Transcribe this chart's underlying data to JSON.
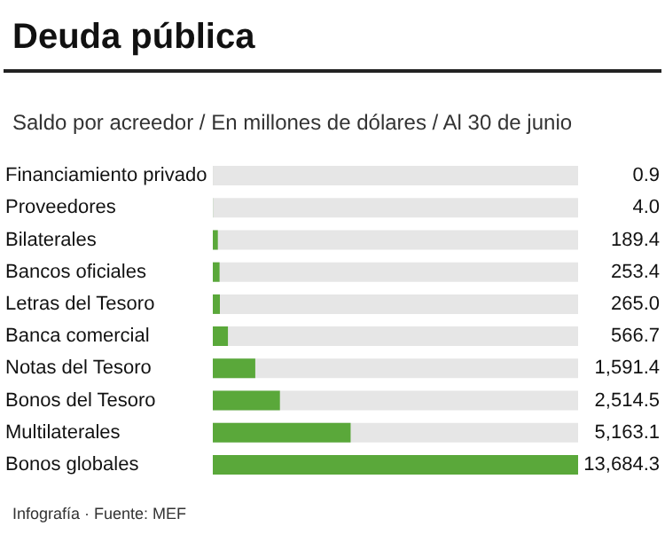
{
  "chart_data": {
    "type": "bar",
    "orientation": "horizontal",
    "title": "Deuda pública",
    "subtitle": "Saldo por acreedor / En millones de dólares / Al 30 de junio",
    "categories": [
      "Financiamiento privado",
      "Proveedores",
      "Bilaterales",
      "Bancos oficiales",
      "Letras del Tesoro",
      "Banca comercial",
      "Notas del Tesoro",
      "Bonos del Tesoro",
      "Multilaterales",
      "Bonos globales"
    ],
    "values": [
      0.9,
      4.0,
      189.4,
      253.4,
      265.0,
      566.7,
      1591.4,
      2514.5,
      5163.1,
      13684.3
    ],
    "value_labels": [
      "0.9",
      "4.0",
      "189.4",
      "253.4",
      "265.0",
      "566.7",
      "1,591.4",
      "2,514.5",
      "5,163.1",
      "13,684.3"
    ],
    "color": "#5aa83a",
    "annotations": [
      "Infografía · Fuente: MEF"
    ]
  }
}
